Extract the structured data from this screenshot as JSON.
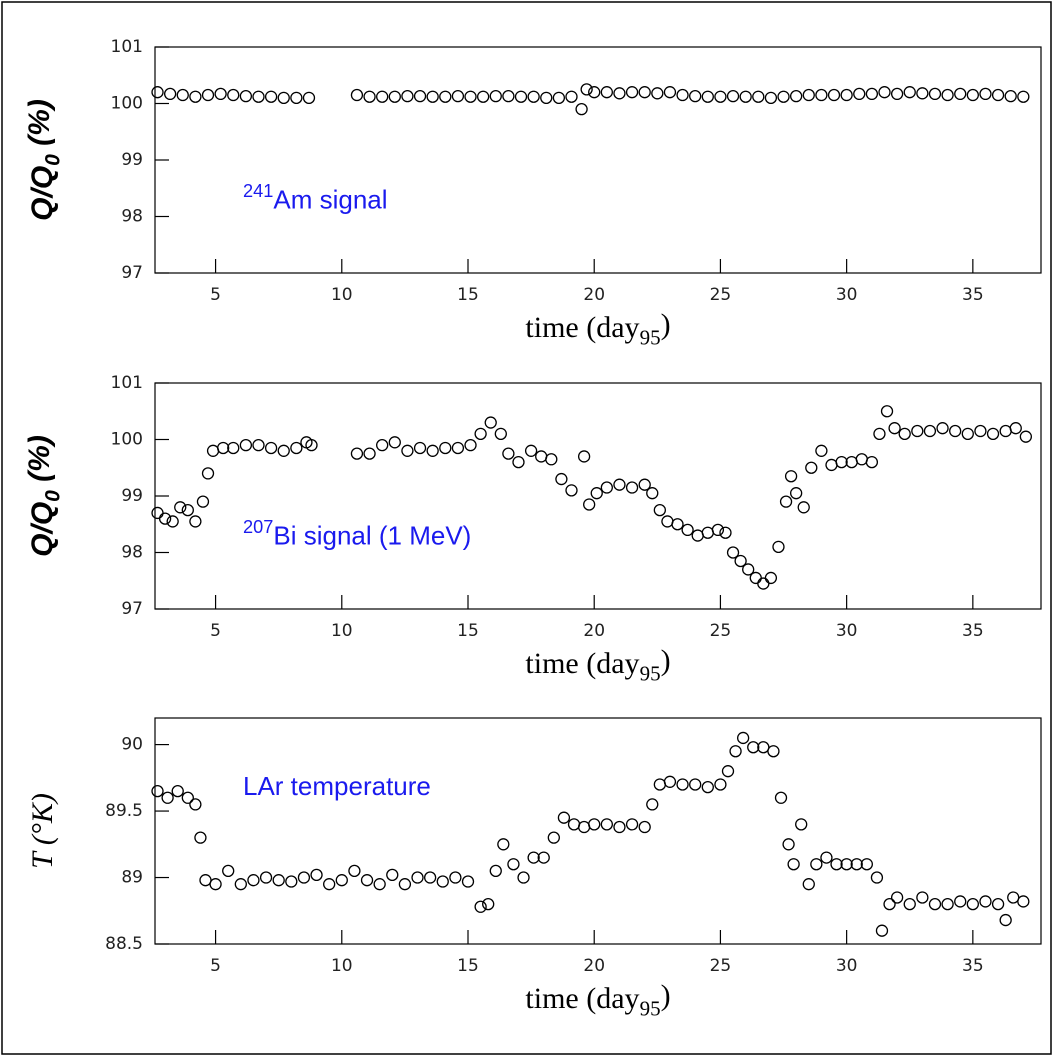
{
  "chart_data": [
    {
      "type": "scatter",
      "color": "#000000",
      "xlabel": {
        "text": "time (day",
        "sub": "95",
        "end": ")"
      },
      "ylabel": {
        "text": "Q/Q",
        "sub": "0",
        "end": " (%)"
      },
      "annotation": {
        "sup": "241",
        "text": "Am signal"
      },
      "xlim": [
        2.6,
        37.7
      ],
      "ylim": [
        97,
        101
      ],
      "xticks": [
        5,
        10,
        15,
        20,
        25,
        30,
        35
      ],
      "yticks": [
        97,
        98,
        99,
        100,
        101
      ],
      "x": [
        2.7,
        3.2,
        3.7,
        4.2,
        4.7,
        5.2,
        5.7,
        6.2,
        6.7,
        7.2,
        7.7,
        8.2,
        8.7,
        10.6,
        11.1,
        11.6,
        12.1,
        12.6,
        13.1,
        13.6,
        14.1,
        14.6,
        15.1,
        15.6,
        16.1,
        16.6,
        17.1,
        17.6,
        18.1,
        18.6,
        19.1,
        19.5,
        19.7,
        20.0,
        20.5,
        21,
        21.5,
        22,
        22.5,
        23,
        23.5,
        24,
        24.5,
        25,
        25.5,
        26,
        26.5,
        27,
        27.5,
        28,
        28.5,
        29,
        29.5,
        30,
        30.5,
        31,
        31.5,
        32,
        32.5,
        33,
        33.5,
        34,
        34.5,
        35,
        35.5,
        36,
        36.5,
        37
      ],
      "values": [
        100.2,
        100.17,
        100.15,
        100.12,
        100.15,
        100.17,
        100.15,
        100.13,
        100.12,
        100.12,
        100.1,
        100.1,
        100.1,
        100.15,
        100.12,
        100.12,
        100.12,
        100.13,
        100.13,
        100.12,
        100.12,
        100.13,
        100.12,
        100.12,
        100.13,
        100.13,
        100.12,
        100.12,
        100.1,
        100.1,
        100.12,
        99.9,
        100.25,
        100.2,
        100.2,
        100.18,
        100.2,
        100.2,
        100.18,
        100.2,
        100.15,
        100.13,
        100.12,
        100.12,
        100.13,
        100.12,
        100.12,
        100.1,
        100.12,
        100.13,
        100.15,
        100.15,
        100.15,
        100.15,
        100.17,
        100.17,
        100.2,
        100.17,
        100.2,
        100.18,
        100.17,
        100.15,
        100.17,
        100.15,
        100.17,
        100.15,
        100.13,
        100.12
      ]
    },
    {
      "type": "scatter",
      "color": "#000000",
      "xlabel": {
        "text": "time (day",
        "sub": "95",
        "end": ")"
      },
      "ylabel": {
        "text": "Q/Q",
        "sub": "0",
        "end": " (%)"
      },
      "annotation": {
        "sup": "207",
        "text": "Bi signal (1 MeV)"
      },
      "xlim": [
        2.6,
        37.7
      ],
      "ylim": [
        97,
        101
      ],
      "xticks": [
        5,
        10,
        15,
        20,
        25,
        30,
        35
      ],
      "yticks": [
        97,
        98,
        99,
        100,
        101
      ],
      "x": [
        2.7,
        3.0,
        3.3,
        3.6,
        3.9,
        4.2,
        4.5,
        4.7,
        4.9,
        5.3,
        5.7,
        6.2,
        6.7,
        7.2,
        7.7,
        8.2,
        8.6,
        8.8,
        10.6,
        11.1,
        11.6,
        12.1,
        12.6,
        13.1,
        13.6,
        14.1,
        14.6,
        15.1,
        15.5,
        15.9,
        16.3,
        16.6,
        17.0,
        17.5,
        17.9,
        18.3,
        18.7,
        19.1,
        19.6,
        19.8,
        20.1,
        20.5,
        21.0,
        21.5,
        22.0,
        22.3,
        22.6,
        22.9,
        23.3,
        23.7,
        24.1,
        24.5,
        24.9,
        25.2,
        25.5,
        25.8,
        26.1,
        26.4,
        26.7,
        27.0,
        27.3,
        27.6,
        27.8,
        28.0,
        28.3,
        28.6,
        29.0,
        29.4,
        29.8,
        30.2,
        30.6,
        31.0,
        31.3,
        31.6,
        31.9,
        32.3,
        32.8,
        33.3,
        33.8,
        34.3,
        34.8,
        35.3,
        35.8,
        36.3,
        36.7,
        37.1
      ],
      "values": [
        98.7,
        98.6,
        98.55,
        98.8,
        98.75,
        98.55,
        98.9,
        99.4,
        99.8,
        99.85,
        99.85,
        99.9,
        99.9,
        99.85,
        99.8,
        99.85,
        99.95,
        99.9,
        99.75,
        99.75,
        99.9,
        99.95,
        99.8,
        99.85,
        99.8,
        99.85,
        99.85,
        99.9,
        100.1,
        100.3,
        100.1,
        99.75,
        99.6,
        99.8,
        99.7,
        99.65,
        99.3,
        99.1,
        99.7,
        98.85,
        99.05,
        99.15,
        99.2,
        99.15,
        99.2,
        99.05,
        98.75,
        98.55,
        98.5,
        98.4,
        98.3,
        98.35,
        98.4,
        98.35,
        98.0,
        97.85,
        97.7,
        97.55,
        97.45,
        97.55,
        98.1,
        98.9,
        99.35,
        99.05,
        98.8,
        99.5,
        99.8,
        99.55,
        99.6,
        99.6,
        99.65,
        99.6,
        100.1,
        100.5,
        100.2,
        100.1,
        100.15,
        100.15,
        100.2,
        100.15,
        100.1,
        100.15,
        100.1,
        100.15,
        100.2,
        100.05
      ]
    },
    {
      "type": "scatter",
      "color": "#000000",
      "xlabel": {
        "text": "time (day",
        "sub": "95",
        "end": ")"
      },
      "ylabel": {
        "text": "T (°K)"
      },
      "annotation": {
        "text": "LAr temperature"
      },
      "xlim": [
        2.6,
        37.7
      ],
      "ylim": [
        88.5,
        90.2
      ],
      "xticks": [
        5,
        10,
        15,
        20,
        25,
        30,
        35
      ],
      "yticks": [
        88.5,
        89,
        89.5,
        90
      ],
      "x": [
        2.7,
        3.1,
        3.5,
        3.9,
        4.2,
        4.4,
        4.6,
        5.0,
        5.5,
        6.0,
        6.5,
        7.0,
        7.5,
        8.0,
        8.5,
        9.0,
        9.5,
        10.0,
        10.5,
        11.0,
        11.5,
        12.0,
        12.5,
        13.0,
        13.5,
        14.0,
        14.5,
        15.0,
        15.5,
        15.8,
        16.1,
        16.4,
        16.8,
        17.2,
        17.6,
        18.0,
        18.4,
        18.8,
        19.2,
        19.6,
        20.0,
        20.5,
        21.0,
        21.5,
        22.0,
        22.3,
        22.6,
        23.0,
        23.5,
        24.0,
        24.5,
        25.0,
        25.3,
        25.6,
        25.9,
        26.3,
        26.7,
        27.1,
        27.4,
        27.7,
        27.9,
        28.2,
        28.5,
        28.8,
        29.2,
        29.6,
        30.0,
        30.4,
        30.8,
        31.2,
        31.4,
        31.7,
        32.0,
        32.5,
        33.0,
        33.5,
        34.0,
        34.5,
        35.0,
        35.5,
        36.0,
        36.3,
        36.6,
        37.0
      ],
      "values": [
        89.65,
        89.6,
        89.65,
        89.6,
        89.55,
        89.3,
        88.98,
        88.95,
        89.05,
        88.95,
        88.98,
        89.0,
        88.98,
        88.97,
        89.0,
        89.02,
        88.95,
        88.98,
        89.05,
        88.98,
        88.95,
        89.02,
        88.95,
        89.0,
        89.0,
        88.97,
        89.0,
        88.97,
        88.78,
        88.8,
        89.05,
        89.25,
        89.1,
        89.0,
        89.15,
        89.15,
        89.3,
        89.45,
        89.4,
        89.38,
        89.4,
        89.4,
        89.38,
        89.4,
        89.38,
        89.55,
        89.7,
        89.72,
        89.7,
        89.7,
        89.68,
        89.7,
        89.8,
        89.95,
        90.05,
        89.98,
        89.98,
        89.95,
        89.6,
        89.25,
        89.1,
        89.4,
        88.95,
        89.1,
        89.15,
        89.1,
        89.1,
        89.1,
        89.1,
        89.0,
        88.6,
        88.8,
        88.85,
        88.8,
        88.85,
        88.8,
        88.8,
        88.82,
        88.8,
        88.82,
        88.8,
        88.68,
        88.85,
        88.82
      ]
    }
  ]
}
